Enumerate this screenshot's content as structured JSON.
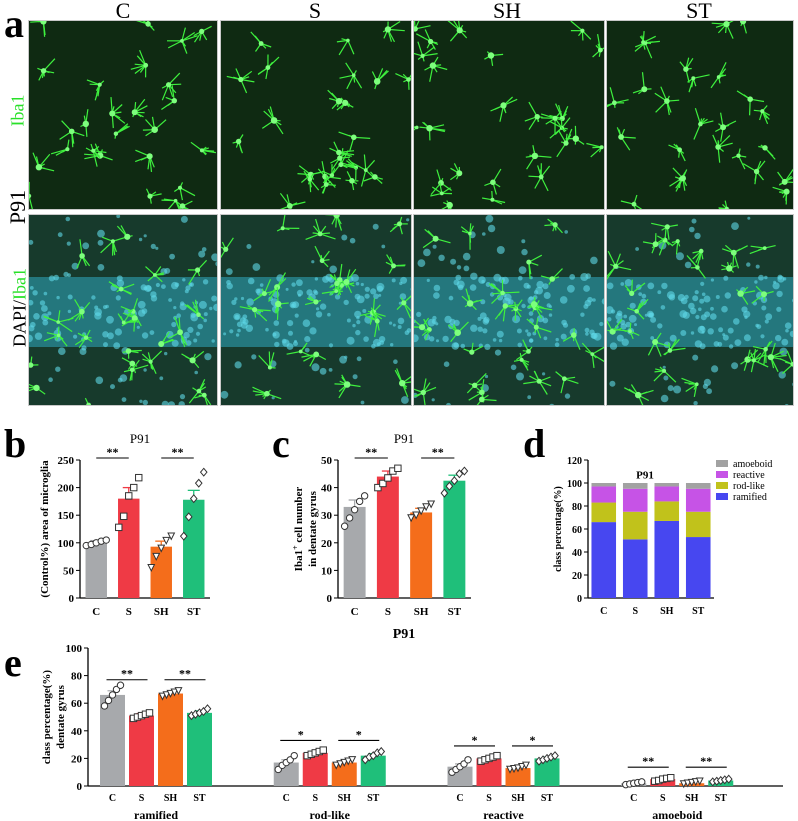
{
  "panel_a": {
    "letter": "a",
    "columns": [
      "C",
      "S",
      "SH",
      "ST"
    ],
    "row_label_top": "Iba1",
    "row_label_mid": "P91",
    "row_label_bottom_prefix": "DAPI/",
    "row_label_bottom_suffix": "Iba1"
  },
  "colors": {
    "C": "#a7a9ac",
    "S": "#ef3a45",
    "SH": "#f46d1b",
    "ST": "#1fbf7a",
    "amoeboid": "#a2a2a2",
    "reactive": "#c653e6",
    "rod-like": "#c1c21b",
    "ramified": "#4747f0"
  },
  "chart_data": [
    {
      "id": "b",
      "letter": "b",
      "type": "bar",
      "title": "P91",
      "ylabel": "(Control%) area of microglia",
      "categories": [
        "C",
        "S",
        "SH",
        "ST"
      ],
      "values": [
        100,
        180,
        93,
        178
      ],
      "errors": [
        4,
        20,
        10,
        17
      ],
      "ylim": [
        0,
        250
      ],
      "yticks": [
        0,
        50,
        100,
        150,
        200,
        250
      ],
      "points": [
        [
          95,
          97,
          100,
          103,
          105
        ],
        [
          128,
          148,
          185,
          200,
          218
        ],
        [
          55,
          75,
          90,
          104,
          112
        ],
        [
          112,
          147,
          180,
          208,
          228
        ]
      ],
      "markers": [
        "circle",
        "square",
        "triangle-down",
        "diamond"
      ],
      "significance": [
        {
          "from": 0,
          "to": 1,
          "label": "**"
        },
        {
          "from": 2,
          "to": 3,
          "label": "**"
        }
      ]
    },
    {
      "id": "c",
      "letter": "c",
      "type": "bar",
      "title": "P91",
      "ylabel_line1": "Iba1",
      "ylabel_sup": "+",
      "ylabel_line1_rest": " cell number",
      "ylabel_line2": "in dentate gyrus",
      "categories": [
        "C",
        "S",
        "SH",
        "ST"
      ],
      "values": [
        33,
        44,
        31,
        42.5
      ],
      "errors": [
        2.5,
        2,
        1.5,
        2
      ],
      "ylim": [
        0,
        50
      ],
      "yticks": [
        0,
        10,
        20,
        30,
        40,
        50
      ],
      "points": [
        [
          26,
          29,
          32,
          35,
          37
        ],
        [
          40,
          41.5,
          43.5,
          46,
          47
        ],
        [
          29,
          30,
          31.5,
          33,
          34
        ],
        [
          38,
          40.5,
          42.5,
          45,
          46
        ]
      ],
      "markers": [
        "circle",
        "square",
        "triangle-down",
        "diamond"
      ],
      "significance": [
        {
          "from": 0,
          "to": 1,
          "label": "**"
        },
        {
          "from": 2,
          "to": 3,
          "label": "**"
        }
      ]
    },
    {
      "id": "d",
      "letter": "d",
      "type": "bar",
      "stacked": true,
      "title": "P91",
      "ylabel": "class percentage(%)",
      "categories": [
        "C",
        "S",
        "SH",
        "ST"
      ],
      "ylim": [
        0,
        120
      ],
      "yticks": [
        0,
        20,
        40,
        60,
        80,
        100,
        120
      ],
      "series": [
        {
          "name": "ramified",
          "values": [
            66,
            51,
            67,
            53
          ]
        },
        {
          "name": "rod-like",
          "values": [
            17,
            24,
            17,
            22
          ]
        },
        {
          "name": "reactive",
          "values": [
            14,
            20,
            13,
            20
          ]
        },
        {
          "name": "amoeboid",
          "values": [
            3,
            5,
            3,
            5
          ]
        }
      ],
      "legend_order": [
        "amoeboid",
        "reactive",
        "rod-like",
        "ramified"
      ],
      "legend_position": "top-right"
    },
    {
      "id": "e",
      "letter": "e",
      "type": "bar",
      "title": "P91",
      "ylabel_line1": "class percentage(%)",
      "ylabel_line2": "dentate gyrus",
      "groups": [
        "ramified",
        "rod-like",
        "reactive",
        "amoeboid"
      ],
      "categories": [
        "C",
        "S",
        "SH",
        "ST"
      ],
      "ylim": [
        0,
        100
      ],
      "yticks": [
        0,
        20,
        40,
        60,
        80,
        100
      ],
      "series": [
        {
          "name": "C",
          "values": [
            66,
            17,
            14,
            2
          ]
        },
        {
          "name": "S",
          "values": [
            51,
            24,
            20,
            5
          ]
        },
        {
          "name": "SH",
          "values": [
            67,
            17,
            13,
            2
          ]
        },
        {
          "name": "ST",
          "values": [
            53,
            22,
            20,
            4
          ]
        }
      ],
      "errors": [
        [
          3,
          2,
          2,
          0.5
        ],
        [
          1.5,
          1,
          1,
          0.6
        ],
        [
          1,
          1,
          1,
          0.5
        ],
        [
          1.5,
          1.5,
          1,
          0.5
        ]
      ],
      "points": [
        [
          [
            58,
            62,
            66,
            70,
            73
          ],
          [
            12,
            15,
            17,
            19,
            22
          ],
          [
            10,
            12,
            14,
            16,
            19
          ],
          [
            1,
            1.5,
            2,
            2.5,
            3
          ]
        ],
        [
          [
            49,
            50,
            51,
            52,
            53
          ],
          [
            22,
            23,
            24,
            25,
            26
          ],
          [
            18,
            19,
            20,
            21,
            22
          ],
          [
            3.5,
            4,
            5,
            5.5,
            6
          ]
        ],
        [
          [
            65,
            66,
            67,
            68,
            69
          ],
          [
            15,
            16,
            17,
            18,
            19
          ],
          [
            12,
            12.5,
            13,
            14,
            15
          ],
          [
            1.5,
            2,
            2.5,
            3,
            3.5
          ]
        ],
        [
          [
            51,
            52,
            53,
            54,
            56
          ],
          [
            19,
            21,
            22,
            24,
            25
          ],
          [
            18,
            19,
            20,
            21,
            22
          ],
          [
            3,
            3.5,
            4,
            4.5,
            5
          ]
        ]
      ],
      "markers": [
        "circle",
        "square",
        "triangle-down",
        "diamond"
      ],
      "significance": [
        {
          "group": 0,
          "from": 0,
          "to": 1,
          "label": "**"
        },
        {
          "group": 0,
          "from": 2,
          "to": 3,
          "label": "**"
        },
        {
          "group": 1,
          "from": 0,
          "to": 1,
          "label": "*"
        },
        {
          "group": 1,
          "from": 2,
          "to": 3,
          "label": "*"
        },
        {
          "group": 2,
          "from": 0,
          "to": 1,
          "label": "*"
        },
        {
          "group": 2,
          "from": 2,
          "to": 3,
          "label": "*"
        },
        {
          "group": 3,
          "from": 0,
          "to": 1,
          "label": "**"
        },
        {
          "group": 3,
          "from": 2,
          "to": 3,
          "label": "**"
        }
      ]
    }
  ]
}
